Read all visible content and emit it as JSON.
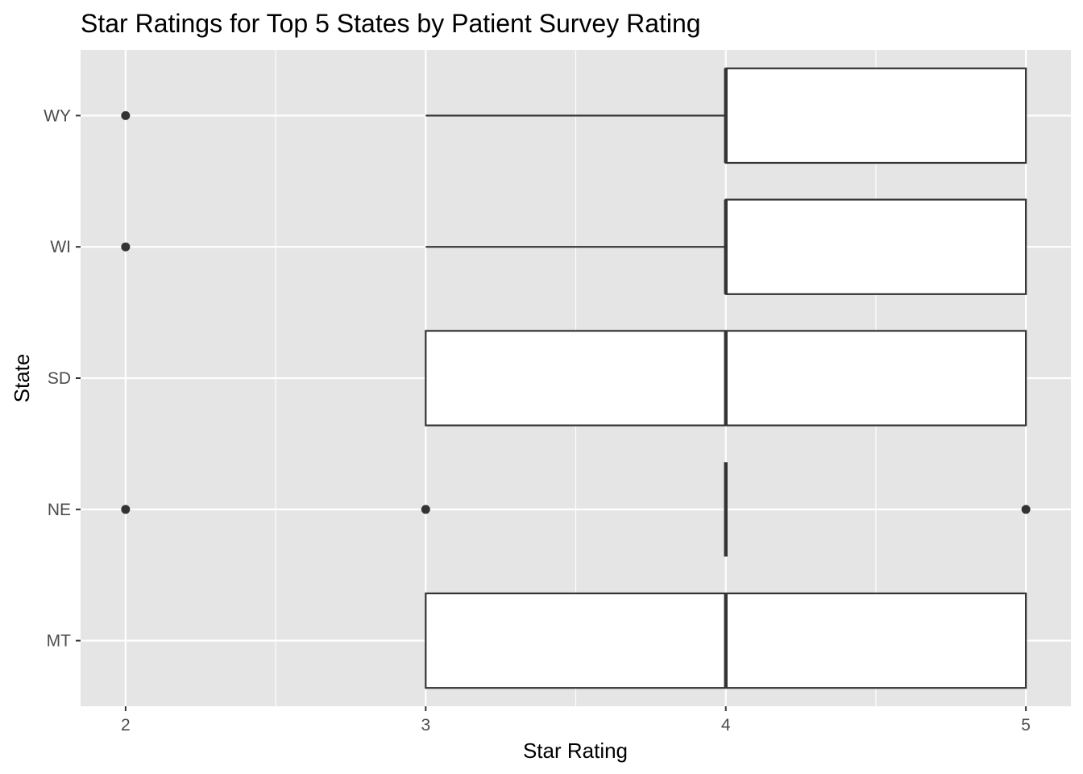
{
  "chart_data": {
    "type": "boxplot",
    "orientation": "horizontal",
    "title": "Star Ratings for Top 5 States by Patient Survey Rating",
    "xlabel": "Star Rating",
    "ylabel": "State",
    "xlim": [
      1.85,
      5.15
    ],
    "x_ticks": [
      2,
      3,
      4,
      5
    ],
    "x_tick_labels": [
      "2",
      "3",
      "4",
      "5"
    ],
    "x_minor_ticks": [
      2.5,
      3.5,
      4.5
    ],
    "grid": true,
    "categories": [
      "MT",
      "NE",
      "SD",
      "WI",
      "WY"
    ],
    "boxes": [
      {
        "category": "MT",
        "whisker_low": 3,
        "q1": 3,
        "median": 4,
        "q3": 5,
        "whisker_high": 5,
        "outliers": []
      },
      {
        "category": "NE",
        "whisker_low": 4,
        "q1": 4,
        "median": 4,
        "q3": 4,
        "whisker_high": 4,
        "outliers": [
          2,
          3,
          5
        ]
      },
      {
        "category": "SD",
        "whisker_low": 3,
        "q1": 3,
        "median": 4,
        "q3": 5,
        "whisker_high": 5,
        "outliers": []
      },
      {
        "category": "WI",
        "whisker_low": 3,
        "q1": 4,
        "median": 4,
        "q3": 5,
        "whisker_high": 5,
        "outliers": [
          2
        ]
      },
      {
        "category": "WY",
        "whisker_low": 3,
        "q1": 4,
        "median": 4,
        "q3": 5,
        "whisker_high": 5,
        "outliers": [
          2
        ]
      }
    ],
    "colors": {
      "panel_background": "#e5e5e5",
      "grid": "#ffffff",
      "box_fill": "#ffffff",
      "box_line": "#333333",
      "outlier": "#333333",
      "tick_label": "#4d4d4d",
      "text": "#000000"
    }
  }
}
